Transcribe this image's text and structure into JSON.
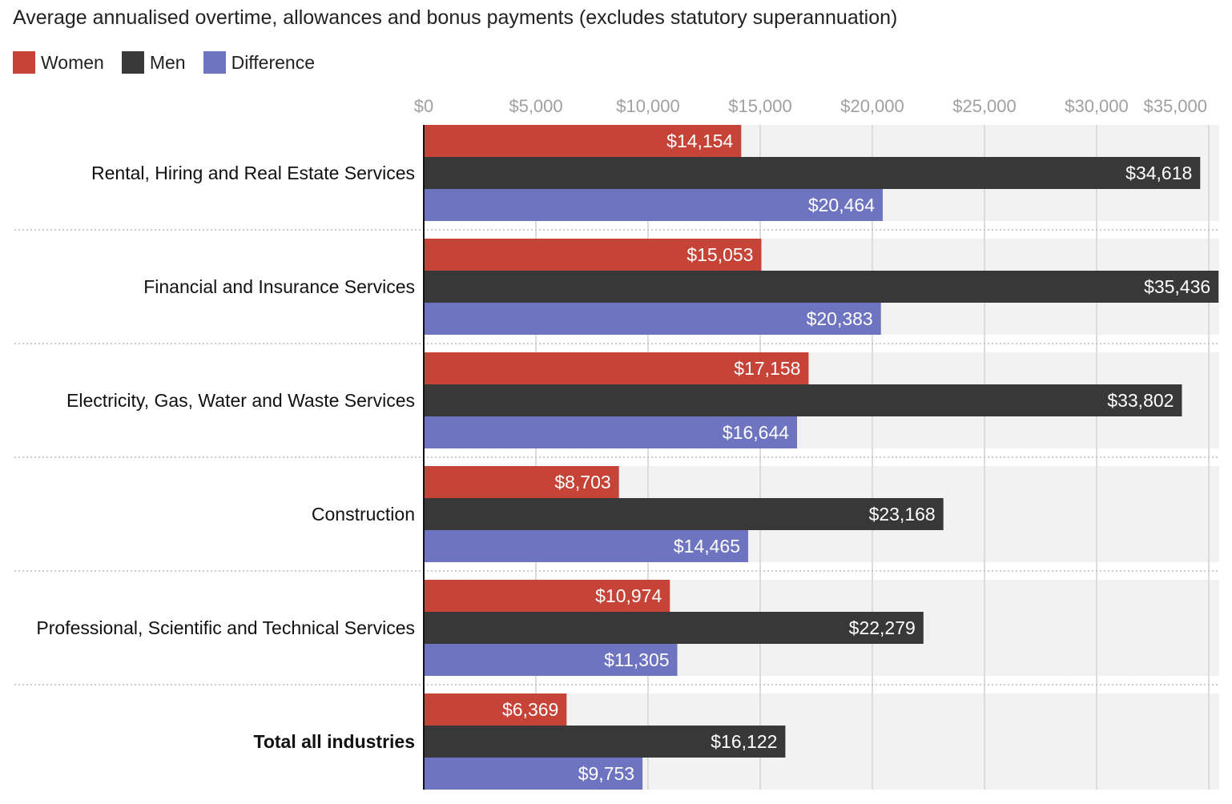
{
  "chart_data": {
    "type": "bar",
    "orientation": "horizontal",
    "title": "Average annualised overtime, allowances and bonus payments (excludes statutory superannuation)",
    "categories": [
      "Rental, Hiring and Real Estate Services",
      "Financial and Insurance Services",
      "Electricity, Gas, Water and Waste Services",
      "Construction",
      "Professional, Scientific and Technical Services",
      "Total all industries"
    ],
    "bold_categories": [
      "Total all industries"
    ],
    "series": [
      {
        "name": "Women",
        "color": "#c64437",
        "values": [
          14154,
          15053,
          17158,
          8703,
          10974,
          6369
        ]
      },
      {
        "name": "Men",
        "color": "#383838",
        "values": [
          34618,
          35436,
          33802,
          23168,
          22279,
          16122
        ]
      },
      {
        "name": "Difference",
        "color": "#6e74bf",
        "values": [
          20464,
          20383,
          16644,
          14465,
          11305,
          9753
        ]
      }
    ],
    "xlim": [
      0,
      35500
    ],
    "xticks": [
      0,
      5000,
      10000,
      15000,
      20000,
      25000,
      30000,
      35000
    ],
    "xtick_labels": [
      "$0",
      "$5,000",
      "$10,000",
      "$15,000",
      "$20,000",
      "$25,000",
      "$30,000",
      "$35,000"
    ],
    "xlabel": "",
    "ylabel": "",
    "grid": true,
    "legend_position": "top-left",
    "data_labels": true
  }
}
